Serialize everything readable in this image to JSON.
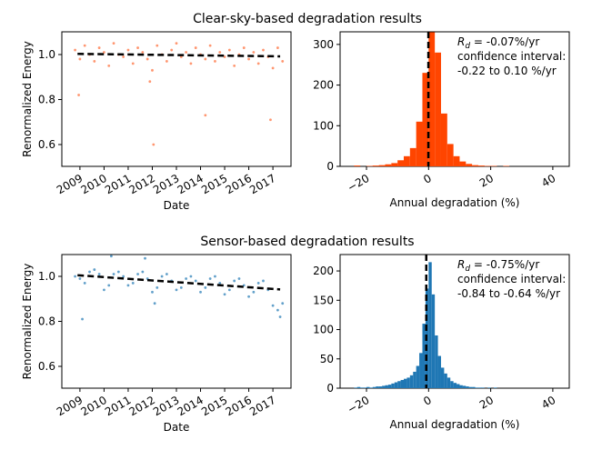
{
  "chart_data": [
    {
      "type": "scatter",
      "title": "Clear-sky-based degradation results",
      "xlabel": "Date",
      "ylabel": "Renormalized Energy",
      "color": "#ff6a33",
      "x": [
        2008.8,
        2009.0,
        2009.2,
        2009.4,
        2009.6,
        2009.8,
        2010.0,
        2010.2,
        2010.4,
        2010.6,
        2010.8,
        2011.0,
        2011.2,
        2011.4,
        2011.6,
        2011.8,
        2012.0,
        2012.2,
        2012.4,
        2012.6,
        2012.8,
        2013.0,
        2013.2,
        2013.4,
        2013.6,
        2013.8,
        2014.0,
        2014.2,
        2014.4,
        2014.6,
        2014.8,
        2015.0,
        2015.2,
        2015.4,
        2015.6,
        2015.8,
        2016.0,
        2016.2,
        2016.4,
        2016.6,
        2016.8,
        2017.0,
        2017.2,
        2017.4,
        2008.95,
        2012.05,
        2014.2,
        2016.9,
        2011.9
      ],
      "y": [
        1.02,
        0.98,
        1.04,
        1.0,
        0.97,
        1.03,
        1.01,
        0.95,
        1.05,
        1.0,
        0.99,
        1.02,
        0.96,
        1.03,
        1.01,
        0.98,
        0.93,
        1.04,
        1.0,
        0.97,
        1.02,
        1.05,
        0.99,
        1.01,
        0.96,
        1.03,
        1.0,
        0.98,
        1.04,
        0.97,
        1.01,
        0.99,
        1.02,
        0.95,
        1.0,
        1.03,
        0.98,
        1.01,
        0.96,
        1.02,
        0.99,
        0.94,
        1.03,
        0.97,
        0.82,
        0.6,
        0.73,
        0.71,
        0.88
      ],
      "trend": {
        "x": [
          2008.9,
          2017.3
        ],
        "y": [
          1.003,
          0.992
        ]
      },
      "xlim": [
        2008.25,
        2017.75
      ],
      "xticks": [
        2009,
        2010,
        2011,
        2012,
        2013,
        2014,
        2015,
        2016,
        2017
      ],
      "ylim": [
        0.503,
        1.101
      ],
      "yticks": [
        0.6,
        0.8,
        {
          "value": 1,
          "label": "1.0"
        }
      ]
    },
    {
      "type": "histogram",
      "xlabel": "Annual degradation (%)",
      "color": "#ff4500",
      "bins": [
        -24,
        -22,
        -20,
        -18,
        -16,
        -14,
        -12,
        -10,
        -8,
        -6,
        -4,
        -2,
        0,
        2,
        4,
        6,
        8,
        10,
        12,
        14,
        16,
        18,
        20,
        22,
        24,
        26
      ],
      "counts": [
        2,
        0,
        1,
        2,
        3,
        5,
        8,
        15,
        25,
        45,
        110,
        230,
        330,
        280,
        130,
        55,
        25,
        12,
        6,
        3,
        2,
        1,
        1,
        0,
        1
      ],
      "vline": -0.07,
      "annotation": {
        "symbol": "R",
        "subscript": "d",
        "text": " = -0.07%/yr",
        "lines": [
          "confidence interval:",
          "-0.22 to 0.10 %/yr"
        ]
      },
      "xlim": [
        -28.5,
        45.3
      ],
      "xticks": [
        {
          "value": -20,
          "label": "−20"
        },
        0,
        20,
        40
      ],
      "ylim": [
        0,
        331
      ],
      "yticks": [
        0,
        100,
        200,
        300
      ]
    },
    {
      "type": "scatter",
      "title": "Sensor-based degradation results",
      "xlabel": "Date",
      "ylabel": "Renormalized Energy",
      "color": "#1f77b4",
      "x": [
        2008.8,
        2009.0,
        2009.2,
        2009.4,
        2009.6,
        2009.8,
        2010.0,
        2010.2,
        2010.4,
        2010.6,
        2010.8,
        2011.0,
        2011.2,
        2011.4,
        2011.6,
        2011.8,
        2012.0,
        2012.2,
        2012.4,
        2012.6,
        2012.8,
        2013.0,
        2013.2,
        2013.4,
        2013.6,
        2013.8,
        2014.0,
        2014.2,
        2014.4,
        2014.6,
        2014.8,
        2015.0,
        2015.2,
        2015.4,
        2015.6,
        2015.8,
        2016.0,
        2016.2,
        2016.4,
        2016.6,
        2016.8,
        2017.0,
        2017.2,
        2017.4,
        2009.1,
        2010.3,
        2017.3,
        2012.1,
        2011.7
      ],
      "y": [
        1.0,
        0.99,
        0.97,
        1.02,
        1.03,
        1.01,
        0.94,
        0.96,
        1.01,
        1.02,
        1.0,
        0.96,
        0.97,
        1.01,
        1.02,
        0.99,
        0.93,
        0.95,
        1.0,
        1.01,
        0.98,
        0.94,
        0.95,
        0.99,
        1.0,
        0.98,
        0.93,
        0.95,
        0.99,
        1.0,
        0.97,
        0.92,
        0.94,
        0.98,
        0.99,
        0.96,
        0.91,
        0.93,
        0.97,
        0.98,
        0.94,
        0.87,
        0.85,
        0.88,
        0.81,
        1.09,
        0.82,
        0.88,
        1.08
      ],
      "trend": {
        "x": [
          2008.9,
          2017.3
        ],
        "y": [
          1.005,
          0.942
        ]
      },
      "xlim": [
        2008.25,
        2017.75
      ],
      "xticks": [
        2009,
        2010,
        2011,
        2012,
        2013,
        2014,
        2015,
        2016,
        2017
      ],
      "ylim": [
        0.503,
        1.097
      ],
      "yticks": [
        0.6,
        0.8,
        {
          "value": 1,
          "label": "1.0"
        }
      ]
    },
    {
      "type": "histogram",
      "xlabel": "Annual degradation (%)",
      "color": "#1f77b4",
      "bins": [
        -24,
        -23,
        -22,
        -21,
        -20,
        -19,
        -18,
        -17,
        -16,
        -15,
        -14,
        -13,
        -12,
        -11,
        -10,
        -9,
        -8,
        -7,
        -6,
        -5,
        -4,
        -3,
        -2,
        -1,
        0,
        1,
        2,
        3,
        4,
        5,
        6,
        7,
        8,
        9,
        10,
        11,
        12,
        13,
        14,
        15,
        16,
        17,
        18,
        19,
        20,
        21,
        22
      ],
      "counts": [
        1,
        2,
        1,
        1,
        2,
        1,
        2,
        3,
        3,
        4,
        5,
        6,
        8,
        10,
        12,
        14,
        16,
        18,
        22,
        28,
        38,
        60,
        110,
        170,
        215,
        160,
        90,
        55,
        35,
        25,
        18,
        12,
        9,
        7,
        5,
        4,
        3,
        2,
        2,
        1,
        1,
        1,
        0,
        1,
        0,
        1
      ],
      "vline": -0.75,
      "annotation": {
        "symbol": "R",
        "subscript": "d",
        "text": " = -0.75%/yr",
        "lines": [
          "confidence interval:",
          "-0.84 to -0.64 %/yr"
        ]
      },
      "xlim": [
        -28.5,
        45.3
      ],
      "xticks": [
        {
          "value": -20,
          "label": "−20"
        },
        0,
        20,
        40
      ],
      "ylim": [
        0,
        228
      ],
      "yticks": [
        0,
        50,
        100,
        150,
        200
      ]
    }
  ]
}
